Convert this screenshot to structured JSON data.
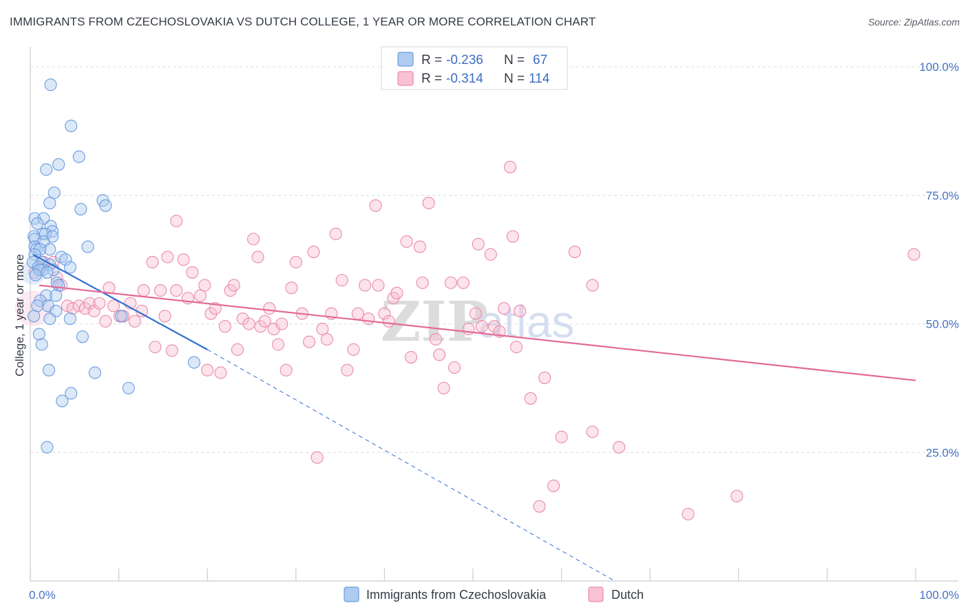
{
  "title": "IMMIGRANTS FROM CZECHOSLOVAKIA VS DUTCH COLLEGE, 1 YEAR OR MORE CORRELATION CHART",
  "source": "Source: ZipAtlas.com",
  "watermark": {
    "zip": "ZIP",
    "atlas": "atlas"
  },
  "legend": {
    "rows": [
      {
        "r_label": "R =",
        "r_value": "-0.236",
        "n_label": "N =",
        "n_value": "67"
      },
      {
        "r_label": "R =",
        "r_value": "-0.314",
        "n_label": "N =",
        "n_value": "114"
      }
    ]
  },
  "colors": {
    "blue_fill": "#aecbf0",
    "blue_stroke": "#6a9be0",
    "blue_line": "#2f6fd0",
    "pink_fill": "#f8c2d4",
    "pink_stroke": "#e98aaa",
    "pink_line": "#e36a96",
    "grid": "#d8dce3",
    "axis_text": "#4472c4"
  },
  "chart_data": {
    "type": "scatter",
    "title": "IMMIGRANTS FROM CZECHOSLOVAKIA VS DUTCH COLLEGE, 1 YEAR OR MORE CORRELATION CHART",
    "xlabel": "",
    "ylabel": "College, 1 year or more",
    "xlim": [
      0,
      100
    ],
    "ylim": [
      0,
      100
    ],
    "x_tick_labels": [
      "0.0%",
      "100.0%"
    ],
    "y_ticks": [
      {
        "value": 25,
        "label": "25.0%"
      },
      {
        "value": 50,
        "label": "50.0%"
      },
      {
        "value": 75,
        "label": "75.0%"
      },
      {
        "value": 100,
        "label": "100.0%"
      }
    ],
    "series": [
      {
        "name": "Immigrants from Czechoslovakia",
        "color": "#6a9be0",
        "R": -0.236,
        "N": 67,
        "trend": {
          "x0": 0.3,
          "y0": 63.5,
          "x1": 20,
          "y1": 45,
          "dash_to_x": 66,
          "dash_to_y": 0
        },
        "points": [
          [
            2.3,
            96.5
          ],
          [
            4.6,
            88.5
          ],
          [
            5.5,
            82.5
          ],
          [
            3.2,
            81
          ],
          [
            1.8,
            80
          ],
          [
            2.7,
            75.5
          ],
          [
            8.2,
            74
          ],
          [
            2.2,
            73.5
          ],
          [
            8.5,
            73
          ],
          [
            5.7,
            72.3
          ],
          [
            0.5,
            70.5
          ],
          [
            1.5,
            70.5
          ],
          [
            2.3,
            69
          ],
          [
            0.8,
            69.5
          ],
          [
            2.5,
            68
          ],
          [
            1.4,
            67.5
          ],
          [
            0.4,
            67
          ],
          [
            1.7,
            67.5
          ],
          [
            2.5,
            67
          ],
          [
            0.5,
            66.5
          ],
          [
            1.5,
            66
          ],
          [
            0.5,
            65
          ],
          [
            6.5,
            65
          ],
          [
            0.7,
            64.5
          ],
          [
            2.2,
            64.5
          ],
          [
            1.1,
            64.5
          ],
          [
            0.5,
            63.5
          ],
          [
            3.5,
            63
          ],
          [
            4.0,
            62.5
          ],
          [
            0.3,
            62
          ],
          [
            1.3,
            62
          ],
          [
            2.2,
            61.5
          ],
          [
            0.9,
            61
          ],
          [
            4.5,
            61
          ],
          [
            1.4,
            60.5
          ],
          [
            2.6,
            60.5
          ],
          [
            1.0,
            60.5
          ],
          [
            1.9,
            60
          ],
          [
            3.0,
            58
          ],
          [
            0.6,
            59.5
          ],
          [
            3.2,
            57.5
          ],
          [
            1.8,
            55.5
          ],
          [
            2.9,
            55.5
          ],
          [
            1.1,
            54.5
          ],
          [
            2.0,
            53.5
          ],
          [
            0.8,
            53.5
          ],
          [
            2.9,
            52.5
          ],
          [
            10.3,
            51.5
          ],
          [
            0.4,
            51.5
          ],
          [
            2.2,
            51
          ],
          [
            4.5,
            51
          ],
          [
            1.0,
            48
          ],
          [
            5.9,
            47.5
          ],
          [
            1.3,
            46
          ],
          [
            18.5,
            42.5
          ],
          [
            2.1,
            41
          ],
          [
            7.3,
            40.5
          ],
          [
            11.1,
            37.5
          ],
          [
            4.6,
            36.5
          ],
          [
            3.6,
            35
          ],
          [
            1.9,
            26
          ]
        ]
      },
      {
        "name": "Dutch",
        "color": "#e98aaa",
        "R": -0.314,
        "N": 114,
        "trend": {
          "x0": 1,
          "y0": 57.5,
          "x1": 100,
          "y1": 39
        },
        "points": [
          [
            0.5,
            60
          ],
          [
            1.2,
            61
          ],
          [
            1.5,
            62
          ],
          [
            2.6,
            62
          ],
          [
            3.0,
            59
          ],
          [
            3.5,
            57.5
          ],
          [
            4.2,
            53.5
          ],
          [
            4.8,
            53
          ],
          [
            5.5,
            53.5
          ],
          [
            6.2,
            53
          ],
          [
            6.7,
            54
          ],
          [
            7.2,
            52.5
          ],
          [
            7.8,
            54
          ],
          [
            8.5,
            50.5
          ],
          [
            8.9,
            57
          ],
          [
            9.4,
            53.5
          ],
          [
            10.1,
            51.5
          ],
          [
            10.5,
            51.5
          ],
          [
            11.3,
            54
          ],
          [
            11.8,
            50.5
          ],
          [
            12.6,
            52.5
          ],
          [
            12.8,
            56.5
          ],
          [
            13.8,
            62
          ],
          [
            14.1,
            45.5
          ],
          [
            14.7,
            56.5
          ],
          [
            15.2,
            51.5
          ],
          [
            15.5,
            63
          ],
          [
            16.0,
            44.8
          ],
          [
            16.5,
            56.5
          ],
          [
            16.5,
            70
          ],
          [
            17.3,
            62.5
          ],
          [
            17.8,
            55
          ],
          [
            18.3,
            60
          ],
          [
            19.2,
            55.5
          ],
          [
            19.7,
            57.5
          ],
          [
            20.0,
            41
          ],
          [
            20.4,
            52
          ],
          [
            20.9,
            53
          ],
          [
            21.5,
            40.5
          ],
          [
            22.0,
            49.5
          ],
          [
            22.6,
            56.5
          ],
          [
            23.0,
            57.5
          ],
          [
            23.4,
            45
          ],
          [
            24.0,
            51
          ],
          [
            24.7,
            50
          ],
          [
            25.2,
            66.5
          ],
          [
            25.7,
            63
          ],
          [
            26.0,
            49.5
          ],
          [
            26.5,
            50.5
          ],
          [
            27.0,
            53
          ],
          [
            27.5,
            49
          ],
          [
            28.0,
            46
          ],
          [
            28.4,
            50
          ],
          [
            28.9,
            41
          ],
          [
            29.5,
            57
          ],
          [
            30.0,
            62
          ],
          [
            30.7,
            52
          ],
          [
            31.5,
            46.5
          ],
          [
            32.0,
            64
          ],
          [
            32.4,
            24
          ],
          [
            33.0,
            49
          ],
          [
            33.5,
            47
          ],
          [
            34.0,
            52
          ],
          [
            34.5,
            67.5
          ],
          [
            35.2,
            58.5
          ],
          [
            35.8,
            41
          ],
          [
            36.5,
            45
          ],
          [
            37.0,
            52
          ],
          [
            37.8,
            57.5
          ],
          [
            38.2,
            51
          ],
          [
            39.3,
            57.5
          ],
          [
            39.0,
            73
          ],
          [
            40.0,
            52
          ],
          [
            40.5,
            50.5
          ],
          [
            41.0,
            55
          ],
          [
            41.4,
            56
          ],
          [
            42.5,
            66
          ],
          [
            43.0,
            43.5
          ],
          [
            44.0,
            65
          ],
          [
            44.3,
            58
          ],
          [
            45.0,
            73.5
          ],
          [
            45.8,
            47
          ],
          [
            46.2,
            44
          ],
          [
            46.7,
            37.5
          ],
          [
            47.5,
            58
          ],
          [
            47.9,
            41.5
          ],
          [
            48.9,
            58
          ],
          [
            49.5,
            49
          ],
          [
            50.3,
            52
          ],
          [
            50.6,
            65.5
          ],
          [
            51.0,
            49.5
          ],
          [
            52.0,
            63.5
          ],
          [
            52.4,
            49.5
          ],
          [
            53.0,
            48.5
          ],
          [
            53.5,
            53
          ],
          [
            54.2,
            80.5
          ],
          [
            54.5,
            67
          ],
          [
            54.9,
            45.5
          ],
          [
            55.3,
            52.5
          ],
          [
            56.5,
            35.5
          ],
          [
            57.5,
            14.5
          ],
          [
            58.1,
            39.5
          ],
          [
            59.1,
            18.5
          ],
          [
            60.0,
            28
          ],
          [
            61.5,
            64
          ],
          [
            63.5,
            57.5
          ],
          [
            63.5,
            29
          ],
          [
            66.5,
            26
          ],
          [
            74.3,
            13
          ],
          [
            79.8,
            16.5
          ],
          [
            99.8,
            63.5
          ]
        ]
      }
    ],
    "legend_position": "top-center",
    "grid": true
  },
  "bottom_legend": {
    "items": [
      {
        "label": "Immigrants from Czechoslovakia"
      },
      {
        "label": "Dutch"
      }
    ]
  }
}
